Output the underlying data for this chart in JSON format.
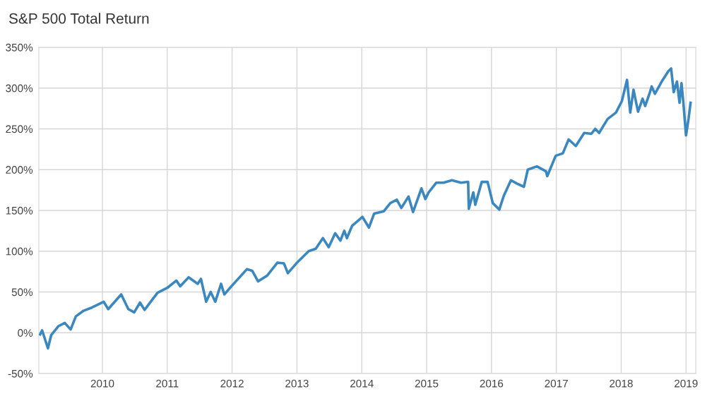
{
  "chart_data": {
    "type": "line",
    "title": "S&P 500 Total Return",
    "x": [
      2009.04,
      2009.07,
      2009.16,
      2009.21,
      2009.32,
      2009.42,
      2009.51,
      2009.59,
      2009.71,
      2009.84,
      2010.02,
      2010.09,
      2010.29,
      2010.4,
      2010.49,
      2010.58,
      2010.65,
      2010.85,
      2011.0,
      2011.14,
      2011.2,
      2011.33,
      2011.47,
      2011.52,
      2011.6,
      2011.67,
      2011.74,
      2011.83,
      2011.88,
      2011.99,
      2012.23,
      2012.31,
      2012.4,
      2012.54,
      2012.7,
      2012.8,
      2012.86,
      2012.99,
      2013.18,
      2013.29,
      2013.4,
      2013.49,
      2013.59,
      2013.67,
      2013.73,
      2013.77,
      2013.85,
      2014.01,
      2014.11,
      2014.19,
      2014.34,
      2014.44,
      2014.54,
      2014.61,
      2014.72,
      2014.79,
      2014.92,
      2014.98,
      2015.03,
      2015.15,
      2015.26,
      2015.39,
      2015.53,
      2015.64,
      2015.65,
      2015.72,
      2015.75,
      2015.85,
      2015.94,
      2016.02,
      2016.12,
      2016.19,
      2016.3,
      2016.39,
      2016.5,
      2016.56,
      2016.7,
      2016.84,
      2016.86,
      2016.99,
      2017.1,
      2017.19,
      2017.3,
      2017.43,
      2017.54,
      2017.6,
      2017.66,
      2017.79,
      2017.92,
      2018.01,
      2018.09,
      2018.14,
      2018.19,
      2018.26,
      2018.33,
      2018.37,
      2018.44,
      2018.47,
      2018.52,
      2018.64,
      2018.73,
      2018.77,
      2018.81,
      2018.86,
      2018.9,
      2018.93,
      2018.96,
      2019.0,
      2019.04,
      2019.07
    ],
    "series": [
      {
        "color": "#3b87c0",
        "values": [
          -2,
          3,
          -19,
          -3,
          8,
          12,
          4,
          20,
          27,
          31,
          38,
          29,
          47,
          29,
          25,
          37,
          28,
          49,
          55,
          64,
          57,
          68,
          60,
          66,
          38,
          50,
          38,
          60,
          47,
          57,
          78,
          76,
          63,
          70,
          86,
          85,
          73,
          85,
          100,
          103,
          116,
          105,
          122,
          113,
          125,
          116,
          131,
          142,
          129,
          146,
          149,
          159,
          163,
          153,
          167,
          148,
          177,
          164,
          172,
          184,
          184,
          187,
          184,
          185,
          152,
          172,
          157,
          185,
          185,
          159,
          151,
          168,
          187,
          183,
          179,
          200,
          204,
          198,
          192,
          217,
          220,
          237,
          229,
          245,
          244,
          250,
          245,
          262,
          270,
          284,
          310,
          270,
          298,
          271,
          287,
          278,
          294,
          302,
          293,
          310,
          321,
          324,
          295,
          308,
          282,
          306,
          281,
          242,
          263,
          282
        ]
      }
    ],
    "xlim": [
      2009.02,
      2019.15
    ],
    "xticks": [
      2010,
      2011,
      2012,
      2013,
      2014,
      2015,
      2016,
      2017,
      2018,
      2019
    ],
    "ylim": [
      -50,
      350
    ],
    "yticks": [
      {
        "value": -50,
        "label": "-50%"
      },
      {
        "value": 0,
        "label": "0%"
      },
      {
        "value": 50,
        "label": "50%"
      },
      {
        "value": 100,
        "label": "100%"
      },
      {
        "value": 150,
        "label": "150%"
      },
      {
        "value": 200,
        "label": "200%"
      },
      {
        "value": 250,
        "label": "250%"
      },
      {
        "value": 300,
        "label": "300%"
      },
      {
        "value": 350,
        "label": "350%"
      }
    ],
    "grid": true,
    "marker": "none",
    "line_style": "solid"
  }
}
